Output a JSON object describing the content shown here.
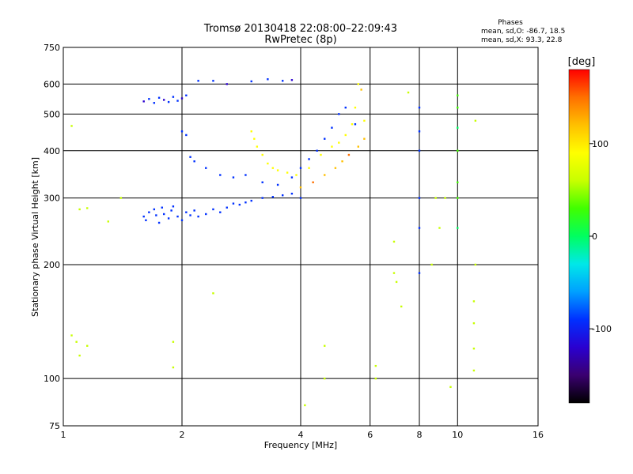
{
  "chart_data": {
    "type": "scatter",
    "title": "Tromsø 20130418 22:08:00–22:09:43",
    "subtitle": "RwPretec (8p)",
    "xlabel": "Frequency [MHz]",
    "ylabel": "Stationary phase Virtual Height [km]",
    "x_scale": "log",
    "y_scale": "log",
    "xlim": [
      1,
      16
    ],
    "ylim": [
      75,
      750
    ],
    "x_ticks": [
      1,
      2,
      4,
      6,
      8,
      10,
      16
    ],
    "y_ticks": [
      75,
      100,
      200,
      300,
      400,
      500,
      600,
      750
    ],
    "grid": true,
    "stats": {
      "heading": "Phases",
      "line_o": "mean, sd,O: -86.7, 18.5",
      "line_x": "mean, sd,X:  93.3, 22.8"
    },
    "colorbar": {
      "label": "[deg]",
      "range": [
        -180,
        180
      ],
      "ticks": [
        100,
        0,
        -100
      ],
      "colors": [
        "#000000",
        "#3a0070",
        "#2a00d0",
        "#0030ff",
        "#00a0ff",
        "#00e8e8",
        "#00ff60",
        "#40ff00",
        "#c8ff00",
        "#ffff00",
        "#ffc000",
        "#ff7000",
        "#ff0000"
      ]
    },
    "series": [
      {
        "name": "O-mode cluster E-F1 (blue)",
        "phase": -95,
        "points": [
          [
            1.6,
            268
          ],
          [
            1.62,
            262
          ],
          [
            1.65,
            275
          ],
          [
            1.7,
            280
          ],
          [
            1.72,
            270
          ],
          [
            1.75,
            258
          ],
          [
            1.78,
            283
          ],
          [
            1.8,
            272
          ],
          [
            1.85,
            265
          ],
          [
            1.88,
            278
          ],
          [
            1.9,
            285
          ],
          [
            1.95,
            268
          ],
          [
            2.0,
            262
          ],
          [
            2.05,
            275
          ],
          [
            2.1,
            270
          ],
          [
            2.15,
            278
          ],
          [
            2.2,
            268
          ],
          [
            2.3,
            272
          ],
          [
            2.4,
            280
          ],
          [
            2.5,
            275
          ],
          [
            2.6,
            283
          ],
          [
            2.7,
            290
          ],
          [
            2.8,
            288
          ],
          [
            2.9,
            292
          ],
          [
            3.0,
            295
          ],
          [
            3.2,
            300
          ],
          [
            3.4,
            302
          ],
          [
            3.6,
            305
          ],
          [
            3.8,
            308
          ],
          [
            4.0,
            300
          ]
        ]
      },
      {
        "name": "O-mode high cluster (blue)",
        "phase": -100,
        "points": [
          [
            1.6,
            540
          ],
          [
            1.65,
            548
          ],
          [
            1.7,
            535
          ],
          [
            1.75,
            552
          ],
          [
            1.8,
            545
          ],
          [
            1.85,
            538
          ],
          [
            1.9,
            555
          ],
          [
            1.95,
            542
          ],
          [
            2.0,
            550
          ],
          [
            2.05,
            560
          ],
          [
            2.2,
            612
          ],
          [
            2.4,
            612
          ],
          [
            2.6,
            600
          ],
          [
            3.0,
            610
          ],
          [
            3.3,
            618
          ],
          [
            3.6,
            612
          ],
          [
            3.8,
            615
          ]
        ]
      },
      {
        "name": "O-mode F2 trace (blue)",
        "phase": -90,
        "points": [
          [
            2.0,
            450
          ],
          [
            2.05,
            440
          ],
          [
            2.1,
            385
          ],
          [
            2.15,
            375
          ],
          [
            2.3,
            360
          ],
          [
            2.5,
            345
          ],
          [
            2.7,
            340
          ],
          [
            2.9,
            345
          ],
          [
            3.2,
            330
          ],
          [
            3.5,
            325
          ],
          [
            3.8,
            340
          ],
          [
            4.0,
            360
          ],
          [
            4.2,
            380
          ],
          [
            4.4,
            400
          ],
          [
            4.6,
            430
          ],
          [
            4.8,
            460
          ],
          [
            5.0,
            500
          ],
          [
            5.2,
            520
          ],
          [
            5.5,
            470
          ]
        ]
      },
      {
        "name": "X-mode trace (yellow)",
        "phase": 95,
        "points": [
          [
            3.0,
            450
          ],
          [
            3.05,
            430
          ],
          [
            3.1,
            410
          ],
          [
            3.2,
            390
          ],
          [
            3.3,
            370
          ],
          [
            3.4,
            360
          ],
          [
            3.5,
            355
          ],
          [
            3.7,
            350
          ],
          [
            3.9,
            345
          ],
          [
            4.2,
            360
          ],
          [
            4.5,
            390
          ],
          [
            4.8,
            410
          ],
          [
            5.0,
            420
          ],
          [
            5.2,
            440
          ],
          [
            5.4,
            470
          ],
          [
            5.5,
            520
          ],
          [
            5.6,
            600
          ],
          [
            5.7,
            580
          ],
          [
            5.8,
            480
          ]
        ]
      },
      {
        "name": "X-mode trace (orange)",
        "phase": 130,
        "points": [
          [
            4.0,
            320
          ],
          [
            4.3,
            330
          ],
          [
            4.6,
            345
          ],
          [
            4.9,
            360
          ],
          [
            5.1,
            375
          ],
          [
            5.3,
            390
          ],
          [
            5.6,
            410
          ],
          [
            5.8,
            430
          ]
        ]
      },
      {
        "name": "Vertical streak 8 MHz (blue)",
        "phase": -85,
        "points": [
          [
            8.0,
            190
          ],
          [
            8.0,
            250
          ],
          [
            8.0,
            300
          ],
          [
            8.0,
            400
          ],
          [
            8.0,
            450
          ],
          [
            8.0,
            520
          ]
        ]
      },
      {
        "name": "Vertical streak 10 MHz (mixed)",
        "phase": 20,
        "points": [
          [
            10.0,
            250
          ],
          [
            10.0,
            300
          ],
          [
            10.0,
            330
          ],
          [
            10.0,
            400
          ],
          [
            10.0,
            460
          ],
          [
            10.0,
            520
          ],
          [
            10.0,
            560
          ]
        ]
      },
      {
        "name": "Sparse noise",
        "phase": 60,
        "points": [
          [
            1.05,
            130
          ],
          [
            1.08,
            125
          ],
          [
            1.1,
            115
          ],
          [
            1.15,
            122
          ],
          [
            1.05,
            465
          ],
          [
            1.1,
            280
          ],
          [
            1.15,
            282
          ],
          [
            1.3,
            260
          ],
          [
            1.4,
            300
          ],
          [
            1.9,
            107
          ],
          [
            1.9,
            125
          ],
          [
            2.4,
            168
          ],
          [
            4.6,
            122
          ],
          [
            4.6,
            100
          ],
          [
            4.1,
            85
          ],
          [
            6.2,
            100
          ],
          [
            6.2,
            108
          ],
          [
            6.9,
            190
          ],
          [
            6.9,
            230
          ],
          [
            7.0,
            180
          ],
          [
            7.2,
            155
          ],
          [
            7.5,
            570
          ],
          [
            8.6,
            200
          ],
          [
            8.8,
            300
          ],
          [
            9.0,
            250
          ],
          [
            9.3,
            300
          ],
          [
            9.6,
            95
          ],
          [
            11.0,
            160
          ],
          [
            11.0,
            140
          ],
          [
            11.0,
            120
          ],
          [
            11.0,
            105
          ],
          [
            11.1,
            200
          ],
          [
            11.1,
            480
          ]
        ]
      }
    ]
  }
}
